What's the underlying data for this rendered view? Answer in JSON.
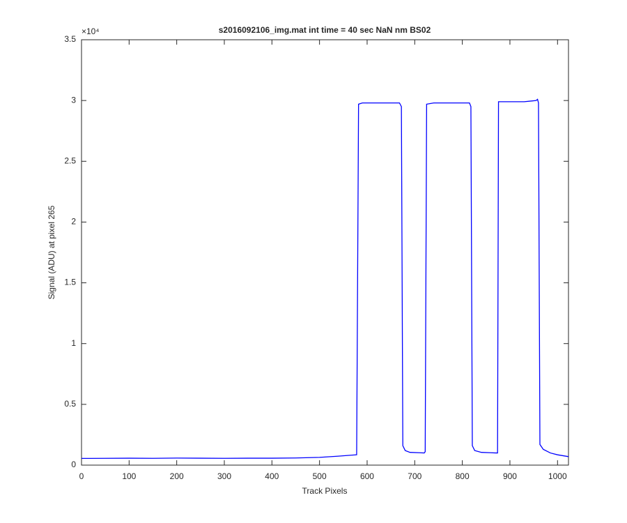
{
  "chart_data": {
    "type": "line",
    "title": "s2016092106_img.mat int time = 40 sec  NaN nm BS02",
    "x_label": "Track Pixels",
    "y_label": "Signal (ADU) at pixel 265",
    "y_scale_label": "×10⁴",
    "x": [
      0,
      50,
      100,
      150,
      200,
      250,
      300,
      350,
      400,
      450,
      500,
      540,
      578,
      582,
      590,
      620,
      650,
      668,
      672,
      675,
      680,
      690,
      710,
      720,
      722,
      725,
      740,
      780,
      815,
      818,
      821,
      826,
      840,
      860,
      871,
      874,
      876,
      900,
      930,
      955,
      958,
      960,
      963,
      970,
      985,
      1000,
      1023
    ],
    "values": [
      0.055,
      0.056,
      0.057,
      0.056,
      0.058,
      0.057,
      0.056,
      0.057,
      0.057,
      0.059,
      0.064,
      0.074,
      0.085,
      2.97,
      2.98,
      2.98,
      2.98,
      2.98,
      2.95,
      0.16,
      0.12,
      0.105,
      0.102,
      0.1,
      0.11,
      2.97,
      2.98,
      2.98,
      2.98,
      2.95,
      0.16,
      0.12,
      0.105,
      0.102,
      0.1,
      0.1,
      2.99,
      2.99,
      2.99,
      3.0,
      3.01,
      2.98,
      0.17,
      0.13,
      0.1,
      0.085,
      0.07
    ],
    "color": "#0000ff",
    "xlim": [
      0,
      1023
    ],
    "xticks": [
      0,
      100,
      200,
      300,
      400,
      500,
      600,
      700,
      800,
      900,
      1000
    ],
    "ylim": [
      0,
      3.5
    ],
    "yticks": [
      0,
      0.5,
      1,
      1.5,
      2,
      2.5,
      3,
      3.5
    ]
  }
}
